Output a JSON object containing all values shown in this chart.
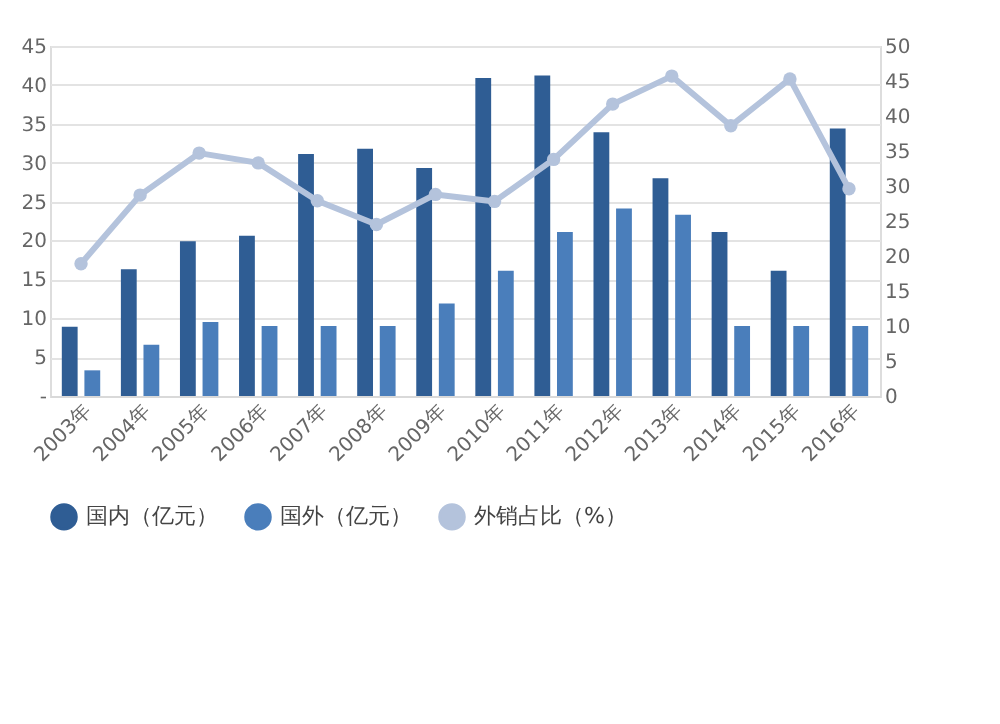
{
  "chart_data": {
    "type": "bar",
    "categories": [
      "2003年",
      "2004年",
      "2005年",
      "2006年",
      "2007年",
      "2008年",
      "2009年",
      "2010年",
      "2011年",
      "2012年",
      "2013年",
      "2014年",
      "2015年",
      "2016年"
    ],
    "series": [
      {
        "name": "国内（亿元）",
        "color": "#2f5d94",
        "values": [
          8.9,
          16.3,
          19.9,
          20.6,
          31.1,
          31.8,
          29.3,
          40.9,
          41.2,
          33.9,
          28.0,
          21.1,
          16.1,
          34.4
        ]
      },
      {
        "name": "国外（亿元）",
        "color": "#4a7ebb",
        "values": [
          3.3,
          6.6,
          9.5,
          9,
          9,
          9,
          11.9,
          16.1,
          21.1,
          24.1,
          23.3,
          9,
          9,
          9
        ]
      },
      {
        "name": "外销占比（%）",
        "type": "line",
        "axis": "y2",
        "marker": "circle",
        "color": "#b4c3dc",
        "values": [
          18.9,
          28.7,
          34.7,
          33.3,
          27.9,
          24.5,
          28.8,
          27.8,
          33.8,
          41.7,
          45.7,
          38.6,
          45.3,
          29.6
        ]
      }
    ],
    "ylim": [
      0,
      45
    ],
    "yticks": [
      {
        "value": 0,
        "label": "-"
      },
      5,
      10,
      15,
      20,
      25,
      30,
      35,
      40,
      45
    ],
    "y2lim": [
      0,
      50
    ],
    "y2ticks": [
      0,
      5,
      10,
      15,
      20,
      25,
      30,
      35,
      40,
      45,
      50
    ],
    "grid": "y",
    "legend": "bottom"
  }
}
